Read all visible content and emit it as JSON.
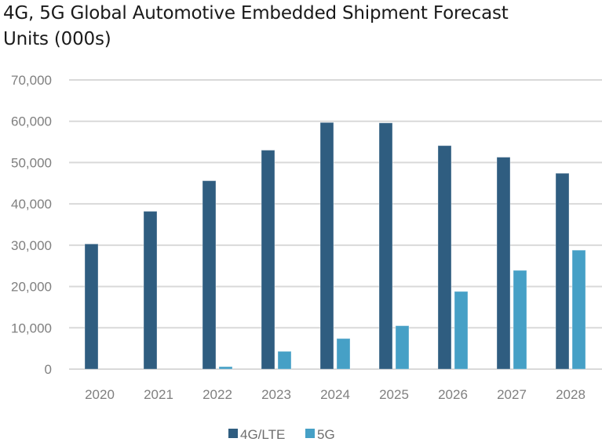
{
  "chart_data": {
    "type": "bar",
    "title": "4G, 5G Global Automotive Embedded Shipment Forecast",
    "subtitle": "Units (000s)",
    "xlabel": "",
    "ylabel": "",
    "categories": [
      "2020",
      "2021",
      "2022",
      "2023",
      "2024",
      "2025",
      "2026",
      "2027",
      "2028"
    ],
    "series": [
      {
        "name": "4G/LTE",
        "color": "#2f5d80",
        "values": [
          30300,
          38200,
          45600,
          53000,
          59700,
          59600,
          54100,
          51300,
          47400
        ]
      },
      {
        "name": "5G",
        "color": "#46a0c6",
        "values": [
          0,
          0,
          600,
          4300,
          7400,
          10500,
          18800,
          23900,
          28800
        ]
      }
    ],
    "ylim": [
      0,
      70000
    ],
    "yticks": [
      0,
      10000,
      20000,
      30000,
      40000,
      50000,
      60000,
      70000
    ],
    "ytick_labels": [
      "0",
      "10,000",
      "20,000",
      "30,000",
      "40,000",
      "50,000",
      "60,000",
      "70,000"
    ],
    "grid": true,
    "gridline_color": "#d9d9d9",
    "legend_position": "bottom-center"
  }
}
